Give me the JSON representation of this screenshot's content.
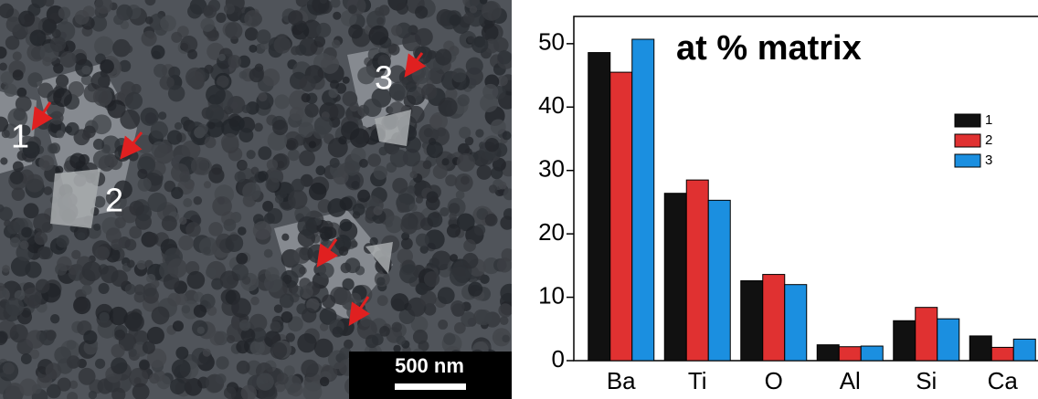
{
  "micrograph": {
    "labels": [
      "1",
      "2",
      "3"
    ],
    "scale_bar": "500 nm"
  },
  "chart_data": {
    "type": "bar",
    "title": "at % matrix",
    "categories": [
      "Ba",
      "Ti",
      "O",
      "Al",
      "Si",
      "Ca"
    ],
    "series": [
      {
        "name": "1",
        "color": "#111111",
        "values": [
          48.6,
          26.4,
          12.6,
          2.5,
          6.3,
          3.9
        ]
      },
      {
        "name": "2",
        "color": "#e03131",
        "values": [
          45.5,
          28.5,
          13.6,
          2.2,
          8.4,
          2.1
        ]
      },
      {
        "name": "3",
        "color": "#1b8fe0",
        "values": [
          50.7,
          25.3,
          12.0,
          2.3,
          6.6,
          3.4
        ]
      }
    ],
    "ylim": [
      0,
      54.3
    ],
    "yticks": [
      0,
      10,
      20,
      30,
      40,
      50
    ],
    "legend": "upper right"
  }
}
